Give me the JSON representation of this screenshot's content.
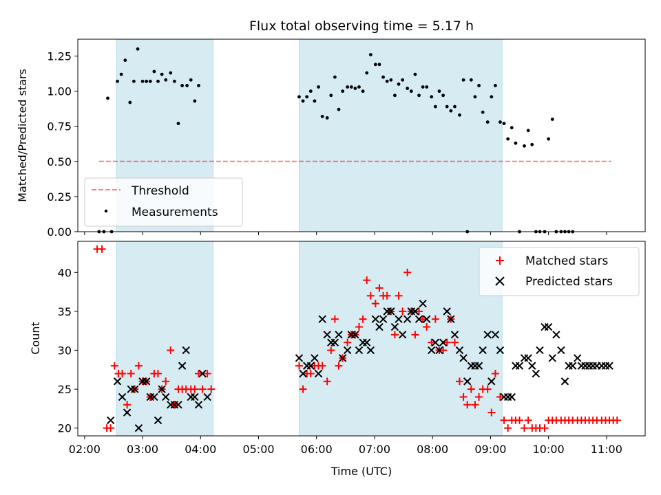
{
  "colors": {
    "shade": "#add8e6",
    "threshold": "#ff0000",
    "measurement": "#000000",
    "matched": "#ff0000",
    "predicted": "#000000"
  },
  "chart_data": [
    {
      "type": "scatter",
      "title": "Flux total observing time = 5.17 h",
      "xlabel": "",
      "ylabel": "Matched/Predicted stars",
      "xlim": [
        "01:53",
        "11:40"
      ],
      "ylim": [
        0,
        1.37
      ],
      "x_ticks": [
        "02:00",
        "03:00",
        "04:00",
        "05:00",
        "06:00",
        "07:00",
        "08:00",
        "09:00",
        "10:00",
        "11:00"
      ],
      "y_ticks": [
        "0.00",
        "0.25",
        "0.50",
        "0.75",
        "1.00",
        "1.25"
      ],
      "shaded_intervals": [
        [
          "02:33",
          "04:13"
        ],
        [
          "05:42",
          "09:12"
        ]
      ],
      "legend": {
        "position": "lower-left",
        "entries": [
          "Threshold",
          "Measurements"
        ]
      },
      "threshold": {
        "name": "Threshold",
        "value": 0.5,
        "x_range": [
          "02:15",
          "11:05"
        ]
      },
      "series": [
        {
          "name": "Measurements",
          "x": [
            "02:15",
            "02:20",
            "02:24",
            "02:28",
            "02:34",
            "02:38",
            "02:42",
            "02:47",
            "02:51",
            "02:55",
            "03:00",
            "03:04",
            "03:08",
            "03:12",
            "03:16",
            "03:20",
            "03:24",
            "03:29",
            "03:33",
            "03:37",
            "03:41",
            "03:46",
            "03:50",
            "03:54",
            "03:58",
            "04:02",
            "04:07",
            "04:11",
            "05:42",
            "05:46",
            "05:50",
            "05:54",
            "05:58",
            "06:02",
            "06:06",
            "06:11",
            "06:15",
            "06:19",
            "06:23",
            "06:27",
            "06:32",
            "06:36",
            "06:40",
            "06:44",
            "06:48",
            "06:52",
            "06:56",
            "07:01",
            "07:05",
            "07:09",
            "07:13",
            "07:17",
            "07:21",
            "07:25",
            "07:29",
            "07:34",
            "07:38",
            "07:42",
            "07:46",
            "07:50",
            "07:54",
            "07:59",
            "08:03",
            "08:07",
            "08:11",
            "08:15",
            "08:19",
            "08:23",
            "08:28",
            "08:32",
            "08:36",
            "08:40",
            "08:44",
            "08:48",
            "08:52",
            "08:57",
            "09:01",
            "09:05",
            "09:10",
            "09:14",
            "09:18",
            "09:22",
            "09:26",
            "09:30",
            "09:35",
            "09:39",
            "09:43",
            "09:47",
            "09:51",
            "09:56",
            "10:00",
            "10:04",
            "10:08",
            "10:13",
            "10:17",
            "10:21",
            "10:25",
            "10:30",
            "10:34",
            "10:38",
            "10:42",
            "10:46",
            "10:50",
            "10:55",
            "10:59",
            "11:03",
            "11:07",
            "11:11"
          ],
          "values": [
            0.0,
            0.0,
            0.95,
            0.0,
            1.07,
            1.12,
            1.22,
            0.92,
            1.07,
            1.3,
            1.07,
            1.07,
            1.07,
            1.14,
            1.07,
            1.12,
            1.08,
            1.13,
            1.07,
            0.77,
            1.04,
            1.04,
            1.08,
            0.93,
            1.04,
            null,
            null,
            null,
            0.96,
            0.93,
            0.96,
            1.0,
            0.93,
            1.03,
            0.82,
            0.81,
            0.97,
            1.1,
            0.87,
            1.0,
            1.03,
            1.03,
            1.02,
            1.03,
            1.0,
            1.13,
            1.26,
            1.19,
            1.19,
            1.1,
            1.07,
            1.08,
            0.97,
            1.05,
            1.08,
            1.02,
            1.0,
            1.12,
            0.97,
            1.03,
            1.03,
            0.96,
            0.89,
            1.0,
            0.97,
            0.89,
            0.86,
            0.89,
            0.83,
            1.08,
            0.0,
            1.08,
            0.96,
            1.04,
            0.85,
            0.78,
            0.96,
            1.04,
            0.78,
            0.77,
            0.66,
            0.74,
            0.63,
            0.0,
            0.61,
            0.72,
            0.62,
            0.0,
            0.0,
            0.0,
            0.66,
            0.8,
            0.0,
            0.0,
            0.0,
            0.0,
            0.0,
            null,
            null,
            null,
            null,
            null,
            null,
            null,
            null,
            null,
            null,
            null
          ]
        }
      ]
    },
    {
      "type": "scatter",
      "title": "",
      "xlabel": "Time (UTC)",
      "ylabel": "Count",
      "xlim": [
        "01:53",
        "11:40"
      ],
      "ylim": [
        19,
        44
      ],
      "x_ticks": [
        "02:00",
        "03:00",
        "04:00",
        "05:00",
        "06:00",
        "07:00",
        "08:00",
        "09:00",
        "10:00",
        "11:00"
      ],
      "y_ticks": [
        "20",
        "25",
        "30",
        "35",
        "40"
      ],
      "shaded_intervals": [
        [
          "02:33",
          "04:13"
        ],
        [
          "05:42",
          "09:12"
        ]
      ],
      "legend": {
        "position": "top-right",
        "entries": [
          "Matched stars",
          "Predicted stars"
        ]
      },
      "series": [
        {
          "name": "Matched stars",
          "marker": "plus",
          "x": [
            "02:13",
            "02:18",
            "02:23",
            "02:27",
            "02:31",
            "02:35",
            "02:39",
            "02:44",
            "02:48",
            "02:52",
            "02:56",
            "03:00",
            "03:04",
            "03:08",
            "03:12",
            "03:16",
            "03:20",
            "03:24",
            "03:29",
            "03:33",
            "03:37",
            "03:41",
            "03:45",
            "03:50",
            "03:54",
            "03:58",
            "04:02",
            "04:07",
            "04:11",
            "05:42",
            "05:46",
            "05:50",
            "05:54",
            "05:58",
            "06:02",
            "06:06",
            "06:11",
            "06:15",
            "06:19",
            "06:23",
            "06:27",
            "06:32",
            "06:36",
            "06:40",
            "06:44",
            "06:48",
            "06:52",
            "06:56",
            "07:01",
            "07:05",
            "07:09",
            "07:13",
            "07:17",
            "07:21",
            "07:25",
            "07:29",
            "07:34",
            "07:38",
            "07:42",
            "07:46",
            "07:50",
            "07:54",
            "07:59",
            "08:03",
            "08:07",
            "08:11",
            "08:15",
            "08:19",
            "08:23",
            "08:28",
            "08:32",
            "08:36",
            "08:40",
            "08:44",
            "08:48",
            "08:52",
            "08:57",
            "09:01",
            "09:05",
            "09:10",
            "09:14",
            "09:18",
            "09:22",
            "09:26",
            "09:30",
            "09:35",
            "09:39",
            "09:43",
            "09:47",
            "09:51",
            "09:56",
            "10:00",
            "10:04",
            "10:08",
            "10:13",
            "10:17",
            "10:21",
            "10:25",
            "10:30",
            "10:34",
            "10:38",
            "10:42",
            "10:46",
            "10:50",
            "10:55",
            "10:59",
            "11:03",
            "11:07",
            "11:11"
          ],
          "values": [
            43,
            43,
            20,
            20,
            28,
            27,
            27,
            23,
            27,
            25,
            28,
            26,
            26,
            24,
            27,
            27,
            25,
            26,
            30,
            23,
            25,
            25,
            25,
            25,
            25,
            27,
            25,
            27,
            25,
            28,
            25,
            27,
            27,
            28,
            28,
            28,
            26,
            30,
            34,
            28,
            29,
            31,
            32,
            32,
            33,
            34,
            39,
            37,
            36,
            38,
            37,
            37,
            35,
            32,
            37,
            35,
            40,
            35,
            32,
            35,
            34,
            33,
            31,
            34,
            30,
            30,
            31,
            34,
            31,
            26,
            24,
            23,
            25,
            23,
            24,
            25,
            25,
            22,
            27,
            24,
            21,
            20,
            21,
            21,
            21,
            20,
            21,
            20,
            20,
            20,
            20,
            21,
            21,
            21,
            21,
            21,
            21,
            21,
            21,
            21,
            21,
            21,
            21,
            21,
            21,
            21,
            21,
            21,
            21
          ]
        },
        {
          "name": "Predicted stars",
          "marker": "x",
          "x": [
            "02:27",
            "02:34",
            "02:39",
            "02:44",
            "02:48",
            "02:52",
            "02:56",
            "03:00",
            "03:04",
            "03:08",
            "03:12",
            "03:16",
            "03:20",
            "03:24",
            "03:29",
            "03:33",
            "03:37",
            "03:41",
            "03:45",
            "03:50",
            "03:54",
            "03:58",
            "04:02",
            "04:07",
            "05:42",
            "05:46",
            "05:50",
            "05:54",
            "05:58",
            "06:02",
            "06:06",
            "06:11",
            "06:15",
            "06:19",
            "06:23",
            "06:27",
            "06:32",
            "06:36",
            "06:40",
            "06:44",
            "06:48",
            "06:52",
            "06:56",
            "07:01",
            "07:05",
            "07:09",
            "07:13",
            "07:17",
            "07:21",
            "07:25",
            "07:29",
            "07:34",
            "07:38",
            "07:42",
            "07:46",
            "07:50",
            "07:54",
            "07:59",
            "08:03",
            "08:07",
            "08:11",
            "08:15",
            "08:19",
            "08:23",
            "08:28",
            "08:32",
            "08:36",
            "08:40",
            "08:44",
            "08:48",
            "08:52",
            "08:57",
            "09:01",
            "09:05",
            "09:10",
            "09:14",
            "09:18",
            "09:22",
            "09:26",
            "09:30",
            "09:35",
            "09:39",
            "09:43",
            "09:47",
            "09:51",
            "09:56",
            "10:00",
            "10:04",
            "10:08",
            "10:13",
            "10:17",
            "10:21",
            "10:25",
            "10:30",
            "10:34",
            "10:38",
            "10:42",
            "10:46",
            "10:50",
            "10:55",
            "10:59",
            "11:03"
          ],
          "values": [
            21,
            26,
            24,
            22,
            25,
            25,
            20,
            26,
            26,
            24,
            24,
            21,
            25,
            24,
            23,
            23,
            23,
            28,
            30,
            24,
            24,
            23,
            27,
            24,
            29,
            27,
            28,
            28,
            29,
            27,
            34,
            32,
            31,
            31,
            32,
            29,
            30,
            32,
            32,
            30,
            31,
            31,
            30,
            34,
            33,
            34,
            35,
            35,
            33,
            34,
            32,
            34,
            35,
            35,
            34,
            36,
            34,
            30,
            31,
            30,
            31,
            35,
            34,
            32,
            30,
            29,
            26,
            28,
            28,
            28,
            30,
            32,
            26,
            32,
            30,
            24,
            24,
            24,
            28,
            28,
            29,
            29,
            28,
            27,
            30,
            33,
            33,
            29,
            32,
            30,
            26,
            28,
            28,
            29,
            28,
            28,
            28,
            28,
            28,
            28,
            28,
            28
          ]
        }
      ]
    }
  ]
}
